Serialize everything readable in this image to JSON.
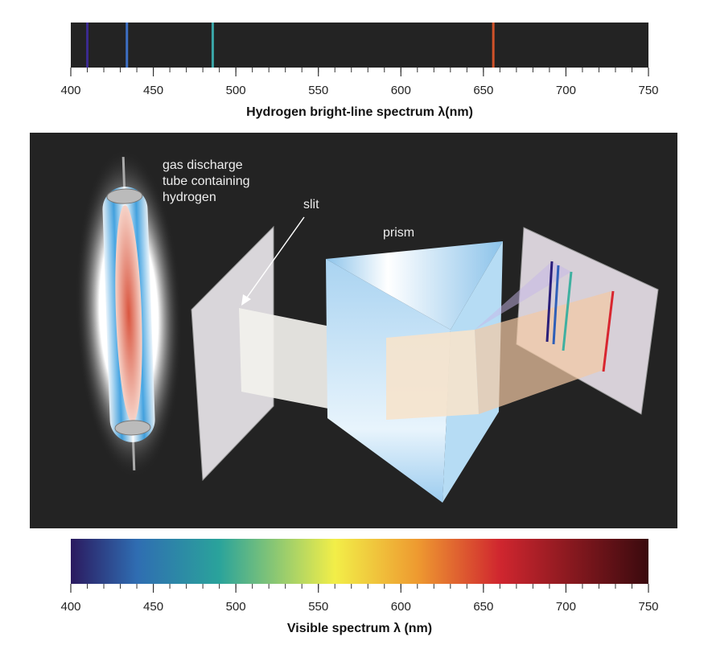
{
  "spectra": [
    {
      "title": "Hydrogen bright-line spectrum λ(nm)",
      "xlim": [
        400,
        750
      ],
      "xticks": [
        400,
        450,
        500,
        550,
        600,
        650,
        700,
        750
      ],
      "minor_tick_step": 10,
      "background": "#232323",
      "lines": [
        {
          "value": 410,
          "color": "#3b2a8f"
        },
        {
          "value": 434,
          "color": "#3d6fc4"
        },
        {
          "value": 486,
          "color": "#3aa6a8"
        },
        {
          "value": 656,
          "color": "#d0522a"
        }
      ]
    },
    {
      "title": "Visible spectrum λ (nm)",
      "xlim": [
        400,
        750
      ],
      "xticks": [
        400,
        450,
        500,
        550,
        600,
        650,
        700,
        750
      ],
      "minor_tick_step": 10,
      "gradient": [
        {
          "value": 400,
          "color": "#2b1a5f"
        },
        {
          "value": 440,
          "color": "#2f6db2"
        },
        {
          "value": 490,
          "color": "#2aa39b"
        },
        {
          "value": 560,
          "color": "#f2ee48"
        },
        {
          "value": 610,
          "color": "#ee9a30"
        },
        {
          "value": 660,
          "color": "#d0262f"
        },
        {
          "value": 750,
          "color": "#3a0a0e"
        }
      ]
    }
  ],
  "diagram": {
    "tube_label": [
      "gas discharge",
      "tube containing",
      "hydrogen"
    ],
    "slit_label": "slit",
    "prism_label": "prism"
  }
}
